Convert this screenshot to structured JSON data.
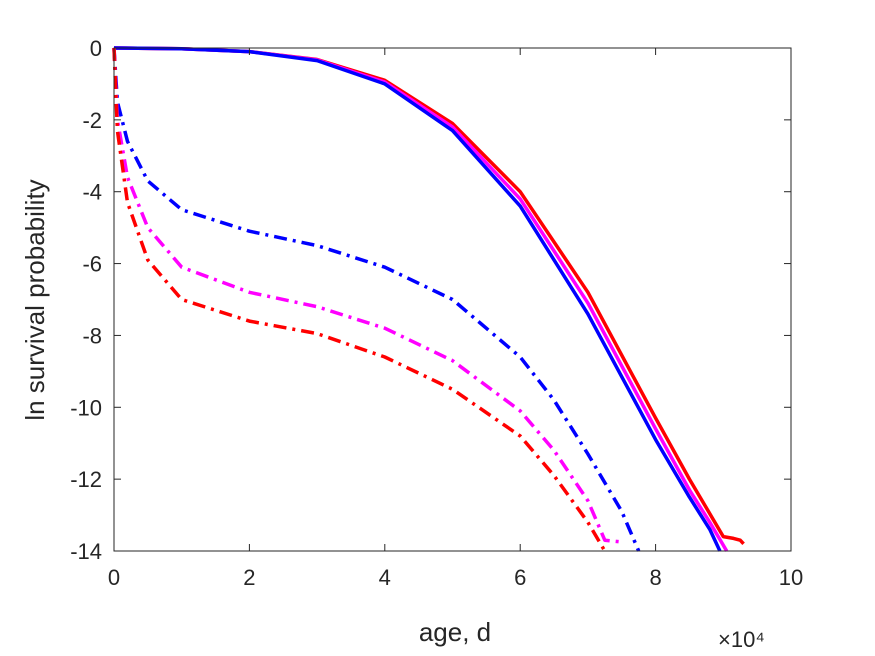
{
  "chart_data": {
    "type": "line",
    "title": "",
    "xlabel": "age, d",
    "ylabel": "ln survival probability",
    "x_exponent_label": "×10⁴",
    "xlim": [
      0,
      100000
    ],
    "ylim": [
      -14,
      0
    ],
    "xticks": [
      0,
      20000,
      40000,
      60000,
      80000,
      100000
    ],
    "xtick_labels": [
      "0",
      "2",
      "4",
      "6",
      "8",
      "10"
    ],
    "yticks": [
      0,
      -2,
      -4,
      -6,
      -8,
      -10,
      -12,
      -14
    ],
    "ytick_labels": [
      "0",
      "-2",
      "-4",
      "-6",
      "-8",
      "-10",
      "-12",
      "-14"
    ],
    "grid": false,
    "legend": "none",
    "series": [
      {
        "color": "#ff0000",
        "style": "solid",
        "points": [
          [
            0,
            0
          ],
          [
            10000,
            -0.02
          ],
          [
            20000,
            -0.1
          ],
          [
            30000,
            -0.32
          ],
          [
            40000,
            -0.9
          ],
          [
            50000,
            -2.1
          ],
          [
            60000,
            -4.0
          ],
          [
            70000,
            -6.8
          ],
          [
            80000,
            -10.3
          ],
          [
            85000,
            -12.0
          ],
          [
            90000,
            -13.6
          ],
          [
            91500,
            -13.65
          ],
          [
            92500,
            -13.7
          ],
          [
            93000,
            -13.8
          ]
        ]
      },
      {
        "color": "#ff00ff",
        "style": "solid",
        "points": [
          [
            0,
            0
          ],
          [
            10000,
            -0.02
          ],
          [
            20000,
            -0.1
          ],
          [
            30000,
            -0.33
          ],
          [
            40000,
            -0.95
          ],
          [
            50000,
            -2.2
          ],
          [
            60000,
            -4.2
          ],
          [
            70000,
            -7.1
          ],
          [
            80000,
            -10.6
          ],
          [
            85000,
            -12.3
          ],
          [
            88000,
            -13.2
          ],
          [
            90500,
            -14.0
          ]
        ]
      },
      {
        "color": "#0000ff",
        "style": "solid",
        "points": [
          [
            0,
            0
          ],
          [
            10000,
            -0.02
          ],
          [
            20000,
            -0.1
          ],
          [
            30000,
            -0.35
          ],
          [
            40000,
            -1.0
          ],
          [
            50000,
            -2.3
          ],
          [
            60000,
            -4.4
          ],
          [
            70000,
            -7.4
          ],
          [
            80000,
            -10.9
          ],
          [
            85000,
            -12.5
          ],
          [
            88000,
            -13.4
          ],
          [
            89500,
            -14.0
          ]
        ]
      },
      {
        "color": "#0000ff",
        "style": "dashdot",
        "points": [
          [
            0,
            0
          ],
          [
            500,
            -1.5
          ],
          [
            2000,
            -2.6
          ],
          [
            5000,
            -3.7
          ],
          [
            10000,
            -4.5
          ],
          [
            20000,
            -5.1
          ],
          [
            30000,
            -5.5
          ],
          [
            40000,
            -6.1
          ],
          [
            50000,
            -7.0
          ],
          [
            60000,
            -8.6
          ],
          [
            65000,
            -9.8
          ],
          [
            70000,
            -11.3
          ],
          [
            75000,
            -12.9
          ],
          [
            77500,
            -14.0
          ]
        ]
      },
      {
        "color": "#ff00ff",
        "style": "dashdot",
        "points": [
          [
            0,
            0
          ],
          [
            500,
            -2.0
          ],
          [
            2000,
            -3.6
          ],
          [
            5000,
            -5.0
          ],
          [
            10000,
            -6.1
          ],
          [
            20000,
            -6.8
          ],
          [
            30000,
            -7.2
          ],
          [
            40000,
            -7.8
          ],
          [
            50000,
            -8.7
          ],
          [
            60000,
            -10.1
          ],
          [
            65000,
            -11.2
          ],
          [
            70000,
            -12.6
          ],
          [
            72500,
            -13.7
          ],
          [
            75000,
            -13.75
          ]
        ]
      },
      {
        "color": "#ff0000",
        "style": "dashdot",
        "points": [
          [
            0,
            0
          ],
          [
            500,
            -2.3
          ],
          [
            2000,
            -4.3
          ],
          [
            5000,
            -5.9
          ],
          [
            10000,
            -7.0
          ],
          [
            20000,
            -7.6
          ],
          [
            30000,
            -7.95
          ],
          [
            40000,
            -8.6
          ],
          [
            50000,
            -9.5
          ],
          [
            60000,
            -10.8
          ],
          [
            65000,
            -11.9
          ],
          [
            70000,
            -13.2
          ],
          [
            72500,
            -14.0
          ]
        ]
      }
    ]
  }
}
